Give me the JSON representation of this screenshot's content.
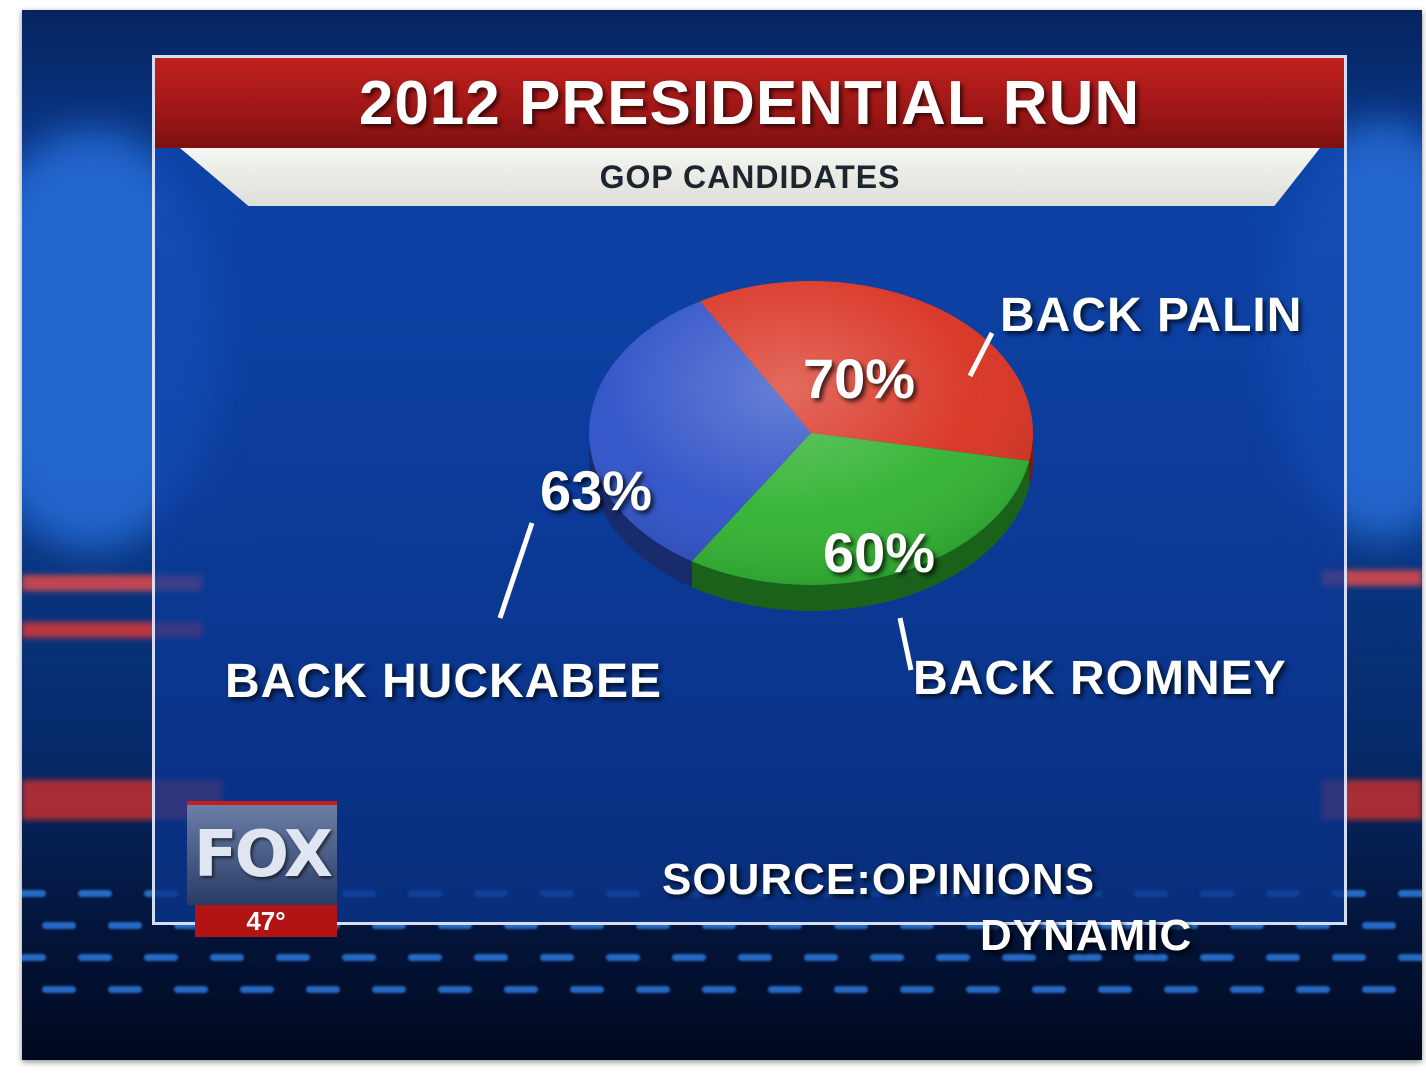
{
  "header": {
    "title": "2012 PRESIDENTIAL RUN",
    "subtitle": "GOP CANDIDATES"
  },
  "chart_data": {
    "type": "pie",
    "title": "2012 PRESIDENTIAL RUN",
    "subtitle": "GOP CANDIDATES",
    "slices": [
      {
        "label": "BACK PALIN",
        "value": 70,
        "value_label": "70%",
        "color": "#d8301f"
      },
      {
        "label": "BACK ROMNEY",
        "value": 60,
        "value_label": "60%",
        "color": "#2fb22f"
      },
      {
        "label": "BACK HUCKABEE",
        "value": 63,
        "value_label": "63%",
        "color": "#2c4fc6"
      }
    ],
    "source": "SOURCE:OPINIONS DYNAMIC"
  },
  "source": {
    "line1": "SOURCE:OPINIONS",
    "line2": "DYNAMIC"
  },
  "logo": {
    "text": "FOX",
    "temperature": "47°"
  },
  "colors": {
    "title_bar": "#a81a18",
    "background": "#0a3b8c"
  }
}
